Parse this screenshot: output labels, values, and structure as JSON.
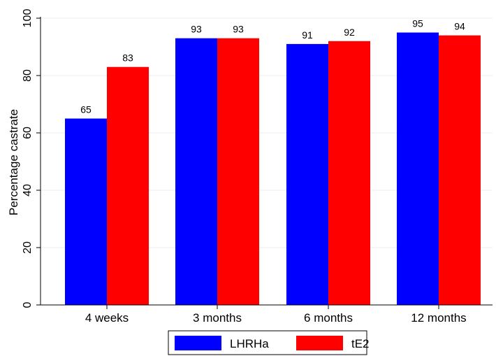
{
  "chart_data": {
    "type": "bar",
    "categories": [
      "4 weeks",
      "3 months",
      "6 months",
      "12 months"
    ],
    "series": [
      {
        "name": "LHRHa",
        "color": "#0000ff",
        "values": [
          65,
          93,
          91,
          95
        ]
      },
      {
        "name": "tE2",
        "color": "#ff0000",
        "values": [
          83,
          93,
          92,
          94
        ]
      }
    ],
    "data_labels": [
      [
        "65",
        "93",
        "91",
        "95"
      ],
      [
        "83",
        "93",
        "92",
        "94"
      ]
    ],
    "ylabel": "Percentage castrate",
    "xlabel": "",
    "ylim": [
      0,
      100
    ],
    "yticks": [
      0,
      20,
      40,
      60,
      80,
      100
    ],
    "grid": true,
    "legend": "bottom"
  }
}
